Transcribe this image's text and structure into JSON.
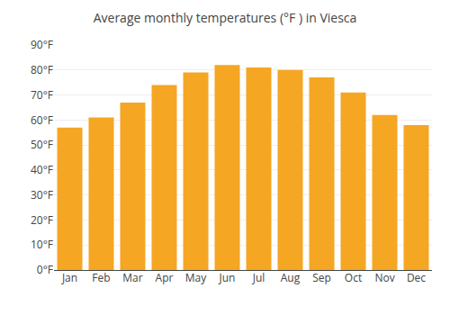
{
  "chart_data": {
    "type": "bar",
    "title": "Average monthly temperatures (°F ) in Viesca",
    "categories": [
      "Jan",
      "Feb",
      "Mar",
      "Apr",
      "May",
      "Jun",
      "Jul",
      "Aug",
      "Sep",
      "Oct",
      "Nov",
      "Dec"
    ],
    "values": [
      57,
      61,
      67,
      74,
      79,
      82,
      81,
      80,
      77,
      71,
      62,
      58
    ],
    "color": "#F5A623",
    "ylim": [
      0,
      90
    ],
    "yticks": [
      {
        "value": 0,
        "label": "0°F"
      },
      {
        "value": 10,
        "label": "10°F"
      },
      {
        "value": 20,
        "label": "20°F"
      },
      {
        "value": 30,
        "label": "30°F"
      },
      {
        "value": 40,
        "label": "40°F"
      },
      {
        "value": 50,
        "label": "50°F"
      },
      {
        "value": 60,
        "label": "60°F"
      },
      {
        "value": 70,
        "label": "70°F"
      },
      {
        "value": 80,
        "label": "80°F"
      },
      {
        "value": 90,
        "label": "90°F"
      }
    ],
    "grid": true
  }
}
